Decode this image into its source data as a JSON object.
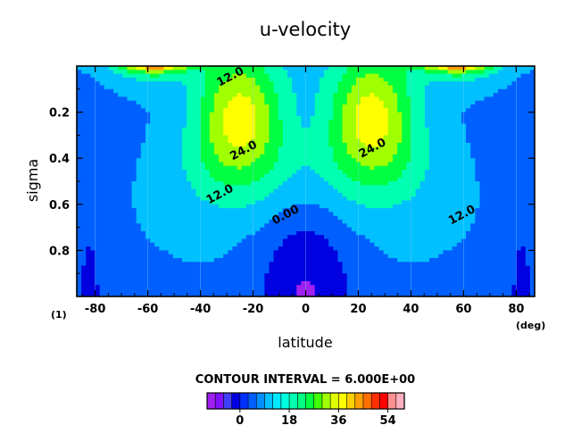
{
  "chart_data": {
    "type": "contour",
    "title": "u-velocity",
    "xlabel": "latitude",
    "ylabel": "sigma",
    "x_unit": "(deg)",
    "corner_label": "(1)",
    "xlim": [
      -87,
      87
    ],
    "ylim": [
      1.0,
      0.0
    ],
    "x_ticks": [
      -80,
      -60,
      -40,
      -20,
      0,
      20,
      40,
      60,
      80
    ],
    "y_ticks": [
      0.2,
      0.4,
      0.6,
      0.8
    ],
    "contour_interval_text": "CONTOUR INTERVAL = 6.000E+00",
    "contour_labels": [
      {
        "text": "12.0",
        "lat": -28,
        "sigma": 0.06
      },
      {
        "text": "24.0",
        "lat": -23,
        "sigma": 0.38
      },
      {
        "text": "12.0",
        "lat": -32,
        "sigma": 0.57
      },
      {
        "text": "0.00",
        "lat": -7,
        "sigma": 0.66
      },
      {
        "text": "24.0",
        "lat": 26,
        "sigma": 0.37
      },
      {
        "text": "12.0",
        "lat": 60,
        "sigma": 0.66
      }
    ],
    "colorbar": {
      "levels": [
        -12,
        -9,
        -6,
        -3,
        0,
        3,
        6,
        9,
        12,
        15,
        18,
        21,
        24,
        27,
        30,
        33,
        36,
        39,
        42,
        45,
        48,
        51,
        54,
        57
      ],
      "tick_labels": [
        "0",
        "18",
        "36",
        "54"
      ],
      "tick_values": [
        0,
        18,
        36,
        54
      ]
    }
  },
  "colors": {
    "scale": [
      "#a020f0",
      "#8010ff",
      "#4040ff",
      "#0000e0",
      "#0030ff",
      "#0060ff",
      "#0090ff",
      "#00c0ff",
      "#00e8ff",
      "#00ffe0",
      "#00ffb0",
      "#00ff80",
      "#00ff40",
      "#40ff00",
      "#a0ff00",
      "#e0ff00",
      "#ffff00",
      "#ffd000",
      "#ffa000",
      "#ff7000",
      "#ff3000",
      "#ff0000",
      "#ff9090",
      "#ffb0c0"
    ],
    "field": [
      "#a020f0",
      "#0000e0",
      "#0060ff",
      "#00c0ff",
      "#00ffb0",
      "#00ff40",
      "#a0ff00",
      "#ffff00",
      "#ffa000",
      "#ff3000",
      "#ff0000"
    ]
  }
}
